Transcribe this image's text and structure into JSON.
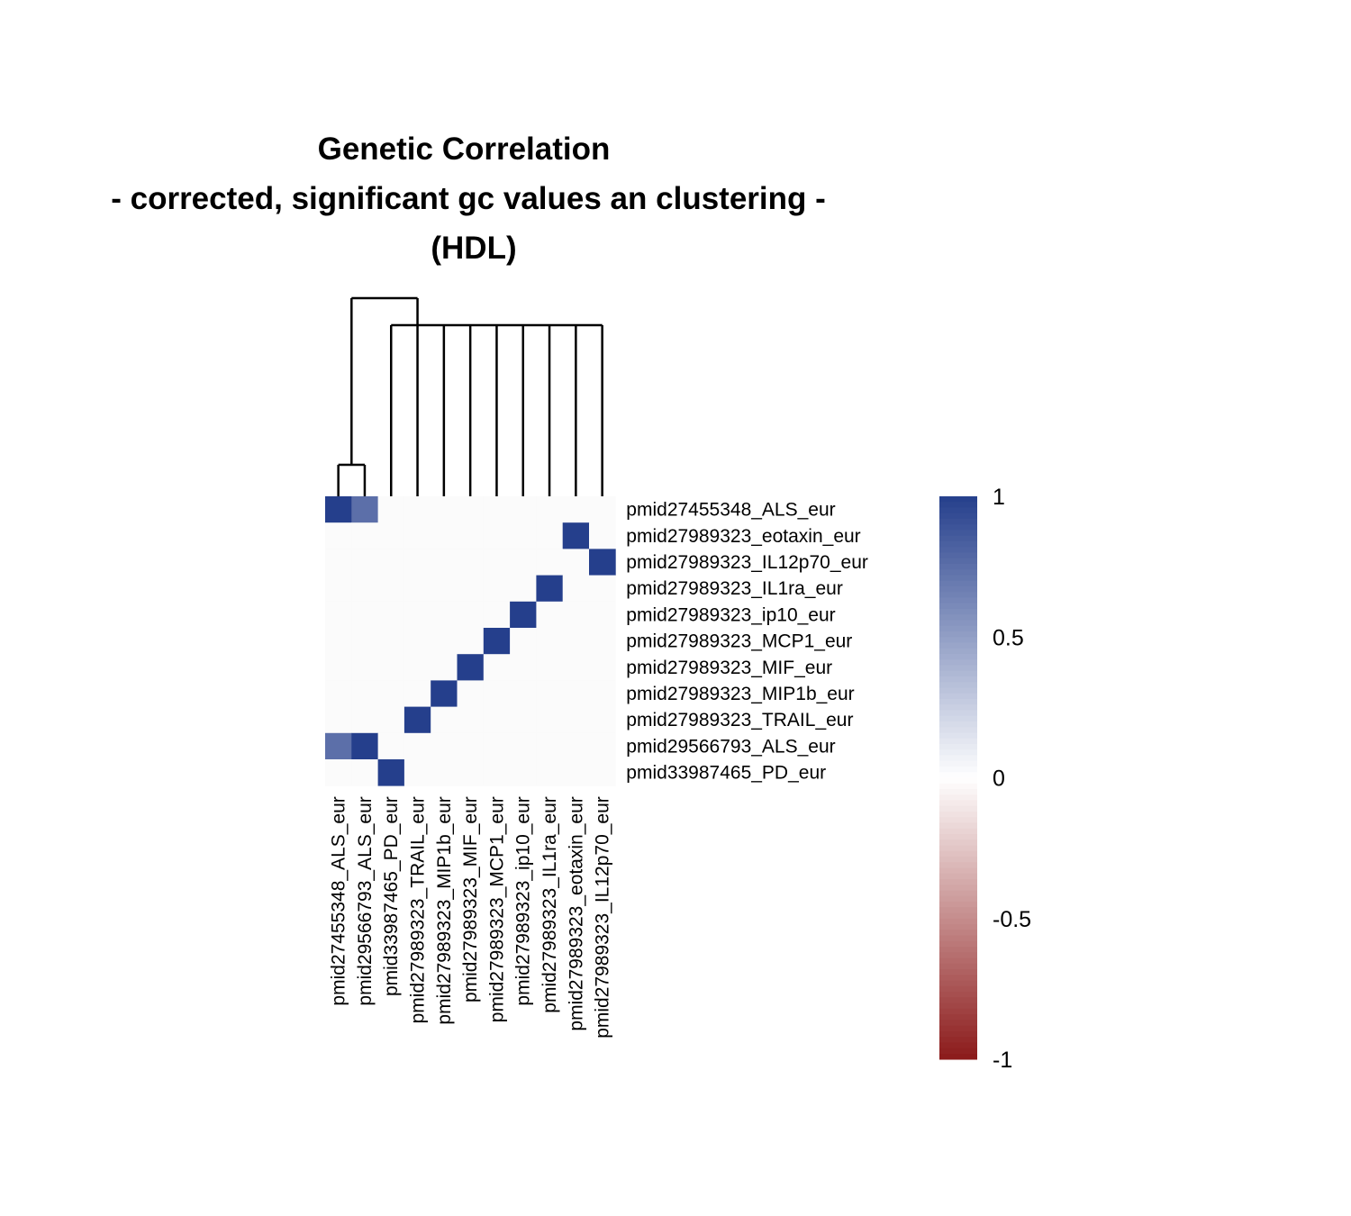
{
  "chart_data": {
    "type": "heatmap",
    "title_lines": [
      "Genetic Correlation",
      "- corrected, significant gc values an clustering -",
      "(HDL)"
    ],
    "rows": [
      "pmid27455348_ALS_eur",
      "pmid27989323_eotaxin_eur",
      "pmid27989323_IL12p70_eur",
      "pmid27989323_IL1ra_eur",
      "pmid27989323_ip10_eur",
      "pmid27989323_MCP1_eur",
      "pmid27989323_MIF_eur",
      "pmid27989323_MIP1b_eur",
      "pmid27989323_TRAIL_eur",
      "pmid29566793_ALS_eur",
      "pmid33987465_PD_eur"
    ],
    "columns": [
      "pmid27455348_ALS_eur",
      "pmid29566793_ALS_eur",
      "pmid33987465_PD_eur",
      "pmid27989323_TRAIL_eur",
      "pmid27989323_MIP1b_eur",
      "pmid27989323_MIF_eur",
      "pmid27989323_MCP1_eur",
      "pmid27989323_ip10_eur",
      "pmid27989323_IL1ra_eur",
      "pmid27989323_eotaxin_eur",
      "pmid27989323_IL12p70_eur"
    ],
    "values": [
      [
        1,
        0.75,
        0,
        0,
        0,
        0,
        0,
        0,
        0,
        0,
        0
      ],
      [
        0,
        0,
        0,
        0,
        0,
        0,
        0,
        0,
        0,
        1,
        0
      ],
      [
        0,
        0,
        0,
        0,
        0,
        0,
        0,
        0,
        0,
        0,
        1
      ],
      [
        0,
        0,
        0,
        0,
        0,
        0,
        0,
        0,
        1,
        0,
        0
      ],
      [
        0,
        0,
        0,
        0,
        0,
        0,
        0,
        1,
        0,
        0,
        0
      ],
      [
        0,
        0,
        0,
        0,
        0,
        0,
        1,
        0,
        0,
        0,
        0
      ],
      [
        0,
        0,
        0,
        0,
        0,
        1,
        0,
        0,
        0,
        0,
        0
      ],
      [
        0,
        0,
        0,
        0,
        1,
        0,
        0,
        0,
        0,
        0,
        0
      ],
      [
        0,
        0,
        0,
        1,
        0,
        0,
        0,
        0,
        0,
        0,
        0
      ],
      [
        0.75,
        1,
        0,
        0,
        0,
        0,
        0,
        0,
        0,
        0,
        0
      ],
      [
        0,
        0,
        1,
        0,
        0,
        0,
        0,
        0,
        0,
        0,
        0
      ]
    ],
    "color_scale": {
      "range": [
        -1,
        1
      ],
      "ticks": [
        "1",
        "0.5",
        "0",
        "-0.5",
        "-1"
      ],
      "tick_values": [
        1,
        0.5,
        0,
        -0.5,
        -1
      ],
      "colors": {
        "low": "#8b1a1a",
        "mid": "#ffffff",
        "high": "#253f8c"
      },
      "zero_cell_color": "#fbfbfb"
    },
    "column_dendrogram": {
      "groups": [
        [
          0,
          1
        ],
        [
          2,
          3,
          4,
          5,
          6,
          7,
          8,
          9,
          10
        ]
      ]
    }
  }
}
